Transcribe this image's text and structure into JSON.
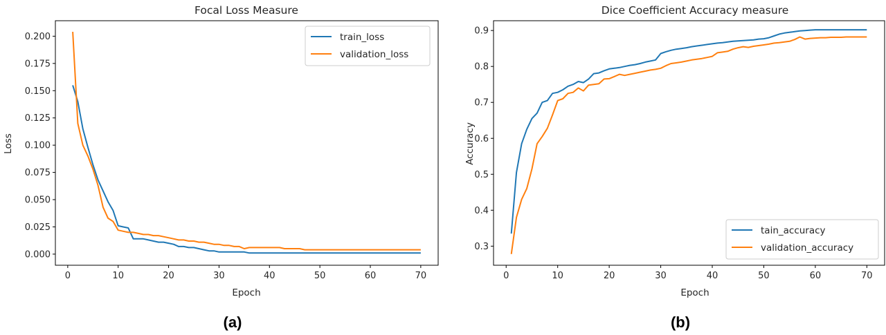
{
  "chart_data": [
    {
      "type": "line",
      "title": "Focal Loss Measure",
      "xlabel": "Epoch",
      "ylabel": "Loss",
      "caption": "(a)",
      "xlim": [
        -2.45,
        73.45
      ],
      "ylim": [
        -0.0102,
        0.2142
      ],
      "xticks": [
        0,
        10,
        20,
        30,
        40,
        50,
        60,
        70
      ],
      "yticks": [
        0.0,
        0.025,
        0.05,
        0.075,
        0.1,
        0.125,
        0.15,
        0.175,
        0.2
      ],
      "ytick_labels": [
        "0.000",
        "0.025",
        "0.050",
        "0.075",
        "0.100",
        "0.125",
        "0.150",
        "0.175",
        "0.200"
      ],
      "grid": false,
      "legend": "upper-right",
      "series": [
        {
          "name": "train_loss",
          "color": "#1f77b4",
          "x": [
            1,
            2,
            3,
            4,
            5,
            6,
            7,
            8,
            9,
            10,
            11,
            12,
            13,
            14,
            15,
            16,
            17,
            18,
            19,
            20,
            21,
            22,
            23,
            24,
            25,
            26,
            27,
            28,
            29,
            30,
            31,
            32,
            33,
            34,
            35,
            36,
            37,
            38,
            39,
            40,
            41,
            42,
            43,
            44,
            45,
            46,
            47,
            48,
            49,
            50,
            51,
            52,
            53,
            54,
            55,
            56,
            57,
            58,
            59,
            60,
            61,
            62,
            63,
            64,
            65,
            66,
            67,
            68,
            69,
            70
          ],
          "y": [
            0.155,
            0.14,
            0.115,
            0.098,
            0.082,
            0.068,
            0.058,
            0.048,
            0.04,
            0.026,
            0.025,
            0.024,
            0.014,
            0.014,
            0.014,
            0.013,
            0.012,
            0.011,
            0.011,
            0.01,
            0.009,
            0.007,
            0.007,
            0.006,
            0.006,
            0.005,
            0.004,
            0.003,
            0.003,
            0.002,
            0.002,
            0.002,
            0.002,
            0.002,
            0.002,
            0.001,
            0.001,
            0.001,
            0.001,
            0.001,
            0.001,
            0.001,
            0.001,
            0.001,
            0.001,
            0.001,
            0.001,
            0.001,
            0.001,
            0.001,
            0.001,
            0.001,
            0.001,
            0.001,
            0.001,
            0.001,
            0.001,
            0.001,
            0.001,
            0.001,
            0.001,
            0.001,
            0.001,
            0.001,
            0.001,
            0.001,
            0.001,
            0.001,
            0.001,
            0.001
          ]
        },
        {
          "name": "validation_loss",
          "color": "#ff7f0e",
          "x": [
            1,
            2,
            3,
            4,
            5,
            6,
            7,
            8,
            9,
            10,
            11,
            12,
            13,
            14,
            15,
            16,
            17,
            18,
            19,
            20,
            21,
            22,
            23,
            24,
            25,
            26,
            27,
            28,
            29,
            30,
            31,
            32,
            33,
            34,
            35,
            36,
            37,
            38,
            39,
            40,
            41,
            42,
            43,
            44,
            45,
            46,
            47,
            48,
            49,
            50,
            51,
            52,
            53,
            54,
            55,
            56,
            57,
            58,
            59,
            60,
            61,
            62,
            63,
            64,
            65,
            66,
            67,
            68,
            69,
            70
          ],
          "y": [
            0.204,
            0.12,
            0.1,
            0.09,
            0.078,
            0.063,
            0.043,
            0.033,
            0.03,
            0.022,
            0.021,
            0.02,
            0.02,
            0.019,
            0.018,
            0.018,
            0.017,
            0.017,
            0.016,
            0.015,
            0.014,
            0.013,
            0.013,
            0.012,
            0.012,
            0.011,
            0.011,
            0.01,
            0.009,
            0.009,
            0.008,
            0.008,
            0.007,
            0.007,
            0.005,
            0.006,
            0.006,
            0.006,
            0.006,
            0.006,
            0.006,
            0.006,
            0.005,
            0.005,
            0.005,
            0.005,
            0.004,
            0.004,
            0.004,
            0.004,
            0.004,
            0.004,
            0.004,
            0.004,
            0.004,
            0.004,
            0.004,
            0.004,
            0.004,
            0.004,
            0.004,
            0.004,
            0.004,
            0.004,
            0.004,
            0.004,
            0.004,
            0.004,
            0.004,
            0.004
          ]
        }
      ]
    },
    {
      "type": "line",
      "title": "Dice Coefficient Accuracy measure",
      "xlabel": "Epoch",
      "ylabel": "Accuracy",
      "caption": "(b)",
      "xlim": [
        -2.45,
        73.45
      ],
      "ylim": [
        0.2469,
        0.9272
      ],
      "xticks": [
        0,
        10,
        20,
        30,
        40,
        50,
        60,
        70
      ],
      "yticks": [
        0.3,
        0.4,
        0.5,
        0.6,
        0.7,
        0.8,
        0.9
      ],
      "ytick_labels": [
        "0.3",
        "0.4",
        "0.5",
        "0.6",
        "0.7",
        "0.8",
        "0.9"
      ],
      "grid": false,
      "legend": "lower-right",
      "series": [
        {
          "name": "tain_accuracy",
          "color": "#1f77b4",
          "x": [
            1,
            2,
            3,
            4,
            5,
            6,
            7,
            8,
            9,
            10,
            11,
            12,
            13,
            14,
            15,
            16,
            17,
            18,
            19,
            20,
            21,
            22,
            23,
            24,
            25,
            26,
            27,
            28,
            29,
            30,
            31,
            32,
            33,
            34,
            35,
            36,
            37,
            38,
            39,
            40,
            41,
            42,
            43,
            44,
            45,
            46,
            47,
            48,
            49,
            50,
            51,
            52,
            53,
            54,
            55,
            56,
            57,
            58,
            59,
            60,
            61,
            62,
            63,
            64,
            65,
            66,
            67,
            68,
            69,
            70
          ],
          "y": [
            0.335,
            0.505,
            0.585,
            0.625,
            0.655,
            0.67,
            0.7,
            0.705,
            0.725,
            0.728,
            0.735,
            0.745,
            0.75,
            0.758,
            0.755,
            0.765,
            0.78,
            0.782,
            0.788,
            0.793,
            0.795,
            0.797,
            0.8,
            0.803,
            0.805,
            0.808,
            0.812,
            0.815,
            0.818,
            0.836,
            0.841,
            0.845,
            0.848,
            0.85,
            0.852,
            0.855,
            0.857,
            0.859,
            0.861,
            0.863,
            0.865,
            0.866,
            0.868,
            0.87,
            0.871,
            0.872,
            0.873,
            0.874,
            0.876,
            0.877,
            0.88,
            0.885,
            0.89,
            0.893,
            0.895,
            0.897,
            0.899,
            0.9,
            0.901,
            0.902,
            0.902,
            0.902,
            0.902,
            0.902,
            0.902,
            0.902,
            0.902,
            0.902,
            0.902,
            0.902
          ]
        },
        {
          "name": "validation_accuracy",
          "color": "#ff7f0e",
          "x": [
            1,
            2,
            3,
            4,
            5,
            6,
            7,
            8,
            9,
            10,
            11,
            12,
            13,
            14,
            15,
            16,
            17,
            18,
            19,
            20,
            21,
            22,
            23,
            24,
            25,
            26,
            27,
            28,
            29,
            30,
            31,
            32,
            33,
            34,
            35,
            36,
            37,
            38,
            39,
            40,
            41,
            42,
            43,
            44,
            45,
            46,
            47,
            48,
            49,
            50,
            51,
            52,
            53,
            54,
            55,
            56,
            57,
            58,
            59,
            60,
            61,
            62,
            63,
            64,
            65,
            66,
            67,
            68,
            69,
            70
          ],
          "y": [
            0.278,
            0.38,
            0.43,
            0.46,
            0.515,
            0.585,
            0.605,
            0.628,
            0.665,
            0.705,
            0.71,
            0.725,
            0.728,
            0.74,
            0.732,
            0.748,
            0.75,
            0.752,
            0.765,
            0.766,
            0.772,
            0.778,
            0.775,
            0.778,
            0.781,
            0.784,
            0.787,
            0.79,
            0.792,
            0.795,
            0.802,
            0.808,
            0.81,
            0.812,
            0.815,
            0.818,
            0.82,
            0.822,
            0.825,
            0.828,
            0.838,
            0.84,
            0.842,
            0.848,
            0.852,
            0.855,
            0.853,
            0.856,
            0.858,
            0.86,
            0.862,
            0.865,
            0.866,
            0.868,
            0.87,
            0.875,
            0.882,
            0.876,
            0.878,
            0.879,
            0.88,
            0.88,
            0.881,
            0.881,
            0.881,
            0.882,
            0.882,
            0.882,
            0.882,
            0.882
          ]
        }
      ]
    }
  ]
}
